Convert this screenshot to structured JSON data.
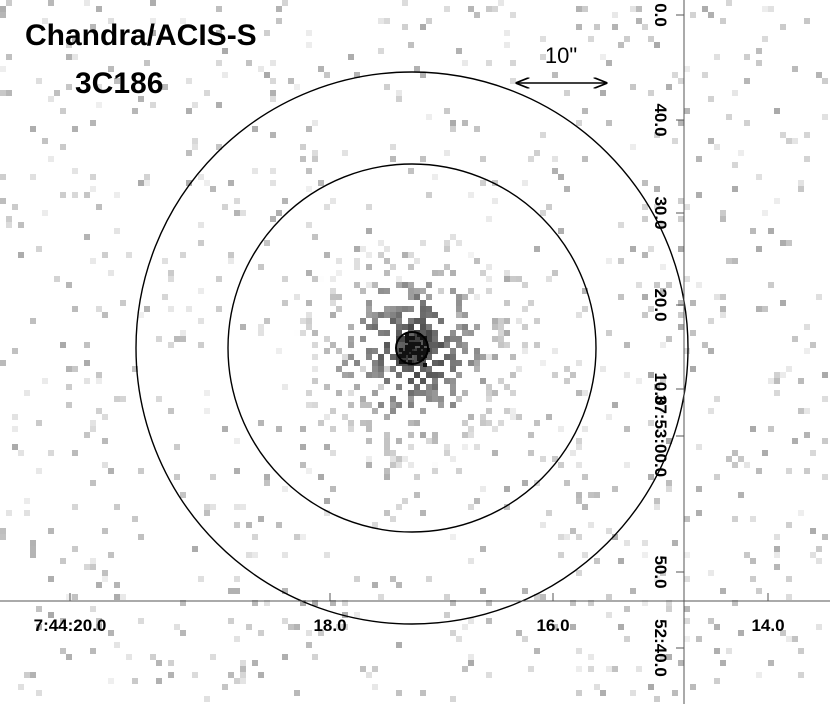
{
  "title": [
    "Chandra/ACIS-S",
    "3C186"
  ],
  "scale_bar": {
    "label": "10\""
  },
  "ra_axis": {
    "labels": [
      "7:44:20.0",
      "18.0",
      "16.0",
      "14.0"
    ]
  },
  "dec_axis": {
    "labels": [
      "0.0",
      "40.0",
      "30.0",
      "20.0",
      "10.0",
      "37:53:00.0",
      "50.0",
      "52:40.0"
    ]
  }
}
